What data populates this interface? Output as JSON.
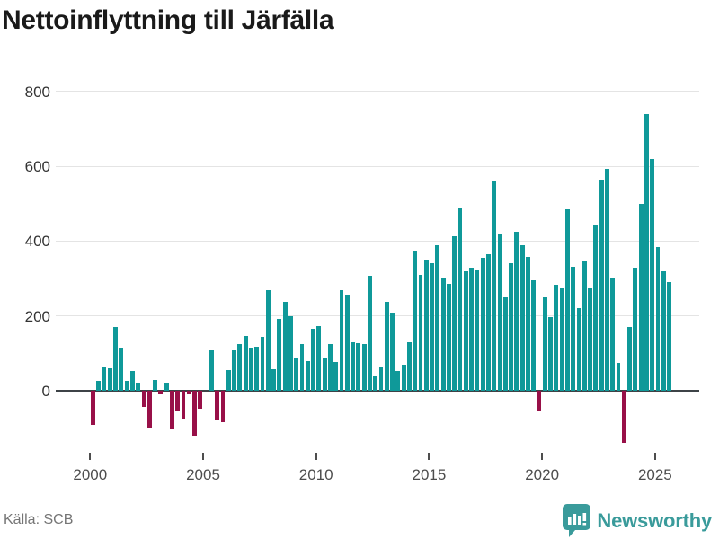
{
  "title": "Nettoinflyttning till Järfälla",
  "source": "Källa: SCB",
  "brand": {
    "name": "Newsworthy"
  },
  "colors": {
    "positive": "#0f9999",
    "negative": "#981048",
    "axis": "#3d4347",
    "grid": "#e4e4e4",
    "title": "#1a1a1a",
    "tick_label": "#4d4d4d",
    "source": "#757575",
    "brand": "#3a9b9b"
  },
  "chart_data": {
    "type": "bar",
    "title": "Nettoinflyttning till Järfälla",
    "xlabel": "",
    "ylabel": "",
    "y_ticks": [
      800,
      600,
      400,
      200,
      0
    ],
    "x_ticks": [
      "2000",
      "2005",
      "2010",
      "2015",
      "2020",
      "2025"
    ],
    "ylim": [
      -160,
      815
    ],
    "grid": true,
    "legend": "none",
    "x": [
      "2000 Q1",
      "2000 Q2",
      "2000 Q3",
      "2000 Q4",
      "2001 Q1",
      "2001 Q2",
      "2001 Q3",
      "2001 Q4",
      "2002 Q1",
      "2002 Q2",
      "2002 Q3",
      "2002 Q4",
      "2003 Q1",
      "2003 Q2",
      "2003 Q3",
      "2003 Q4",
      "2004 Q1",
      "2004 Q2",
      "2004 Q3",
      "2004 Q4",
      "2005 Q1",
      "2005 Q2",
      "2005 Q3",
      "2005 Q4",
      "2006 Q1",
      "2006 Q2",
      "2006 Q3",
      "2006 Q4",
      "2007 Q1",
      "2007 Q2",
      "2007 Q3",
      "2007 Q4",
      "2008 Q1",
      "2008 Q2",
      "2008 Q3",
      "2008 Q4",
      "2009 Q1",
      "2009 Q2",
      "2009 Q3",
      "2009 Q4",
      "2010 Q1",
      "2010 Q2",
      "2010 Q3",
      "2010 Q4",
      "2011 Q1",
      "2011 Q2",
      "2011 Q3",
      "2011 Q4",
      "2012 Q1",
      "2012 Q2",
      "2012 Q3",
      "2012 Q4",
      "2013 Q1",
      "2013 Q2",
      "2013 Q3",
      "2013 Q4",
      "2014 Q1",
      "2014 Q2",
      "2014 Q3",
      "2014 Q4",
      "2015 Q1",
      "2015 Q2",
      "2015 Q3",
      "2015 Q4",
      "2016 Q1",
      "2016 Q2",
      "2016 Q3",
      "2016 Q4",
      "2017 Q1",
      "2017 Q2",
      "2017 Q3",
      "2017 Q4",
      "2018 Q1",
      "2018 Q2",
      "2018 Q3",
      "2018 Q4",
      "2019 Q1",
      "2019 Q2",
      "2019 Q3",
      "2019 Q4",
      "2020 Q1",
      "2020 Q2",
      "2020 Q3",
      "2020 Q4",
      "2021 Q1",
      "2021 Q2",
      "2021 Q3",
      "2021 Q4",
      "2022 Q1",
      "2022 Q2",
      "2022 Q3",
      "2022 Q4",
      "2023 Q1",
      "2023 Q2",
      "2023 Q3",
      "2023 Q4",
      "2024 Q1",
      "2024 Q2",
      "2024 Q3",
      "2024 Q4",
      "2025 Q1",
      "2025 Q2",
      "2025 Q3"
    ],
    "values": [
      -90,
      27,
      62,
      60,
      170,
      115,
      26,
      52,
      21,
      -42,
      -98,
      29,
      -10,
      22,
      -100,
      -54,
      -74,
      -10,
      -120,
      -48,
      0,
      108,
      -78,
      -84,
      55,
      108,
      126,
      146,
      116,
      118,
      145,
      268,
      57,
      192,
      238,
      200,
      88,
      126,
      79,
      166,
      172,
      90,
      125,
      78,
      268,
      257,
      130,
      128,
      126,
      308,
      42,
      65,
      238,
      210,
      54,
      69,
      129,
      375,
      310,
      350,
      340,
      390,
      300,
      285,
      413,
      490,
      320,
      330,
      325,
      355,
      365,
      562,
      420,
      250,
      340,
      425,
      390,
      357,
      296,
      -52,
      250,
      198,
      284,
      274,
      486,
      331,
      220,
      349,
      274,
      443,
      565,
      594,
      300,
      75,
      -138,
      170,
      330,
      500,
      740,
      620,
      385,
      320,
      290
    ]
  }
}
